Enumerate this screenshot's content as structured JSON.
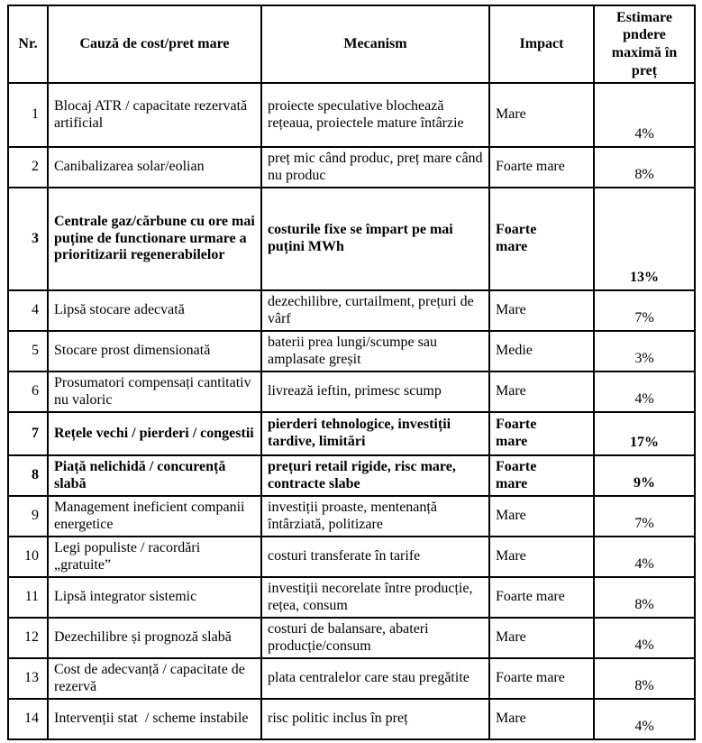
{
  "colors": {
    "navy": "#1f3d73",
    "red": "#e02020",
    "green": "#00a550"
  },
  "table": {
    "headers": {
      "nr": "Nr.",
      "cause": "Cauză de cost/pret mare",
      "mechanism": "Mecanism",
      "impact": "Impact",
      "estimate": "Estimare pndere maximă în preț"
    },
    "rows": [
      {
        "nr": "1",
        "cause": "Blocaj ATR / capacitate rezervată artificial",
        "mechanism": "proiecte speculative blochează rețeaua, proiectele mature întârzie",
        "impact": "Mare",
        "estimate": "4%",
        "color": "default"
      },
      {
        "nr": "2",
        "cause": "Canibalizarea solar/eolian",
        "mechanism": "preț mic când produc, preț mare când nu produc",
        "impact": "Foarte mare",
        "estimate": "8%",
        "color": "default"
      },
      {
        "nr": "3",
        "cause": "Centrale gaz/cărbune cu ore mai puține de functionare urmare a prioritizarii regenerabilelor",
        "mechanism": "costurile fixe se împart pe mai puțini MWh",
        "impact": "Foarte mare",
        "estimate": "13%",
        "color": "navy"
      },
      {
        "nr": "4",
        "cause": "Lipsă stocare adecvată",
        "mechanism": "dezechilibre, curtailment, prețuri de vârf",
        "impact": "Mare",
        "estimate": "7%",
        "color": "default"
      },
      {
        "nr": "5",
        "cause": "Stocare prost dimensionată",
        "mechanism": "baterii prea lungi/scumpe sau amplasate greșit",
        "impact": "Medie",
        "estimate": "3%",
        "color": "default"
      },
      {
        "nr": "6",
        "cause": "Prosumatori compensați cantitativ nu valoric",
        "mechanism": "livrează ieftin, primesc scump",
        "impact": "Mare",
        "estimate": "4%",
        "color": "default"
      },
      {
        "nr": "7",
        "cause": "Rețele vechi / pierderi / congestii",
        "mechanism": "pierderi tehnologice, investiții tardive, limitări",
        "impact": "Foarte mare",
        "estimate": "17%",
        "color": "red"
      },
      {
        "nr": "8",
        "cause": "Piață nelichidă / concurență slabă",
        "mechanism": "prețuri retail rigide, risc mare, contracte slabe",
        "impact": "Foarte mare",
        "estimate": "9%",
        "color": "green"
      },
      {
        "nr": "9",
        "cause": "Management ineficient companii energetice",
        "mechanism": "investiții proaste, mentenanță întârziată, politizare",
        "impact": "Mare",
        "estimate": "7%",
        "color": "default"
      },
      {
        "nr": "10",
        "cause": "Legi populiste / racordări „gratuite”",
        "mechanism": "costuri transferate în tarife",
        "impact": "Mare",
        "estimate": "4%",
        "color": "default"
      },
      {
        "nr": "11",
        "cause": "Lipsă integrator sistemic",
        "mechanism": "investiții necorelate între producție, rețea, consum",
        "impact": "Foarte mare",
        "estimate": "8%",
        "color": "default"
      },
      {
        "nr": "12",
        "cause": "Dezechilibre și prognoză slabă",
        "mechanism": "costuri de balansare, abateri producție/consum",
        "impact": "Mare",
        "estimate": "4%",
        "color": "default"
      },
      {
        "nr": "13",
        "cause": "Cost de adecvanță / capacitate de rezervă",
        "mechanism": "plata centralelor care stau pregătite",
        "impact": "Foarte mare",
        "estimate": "8%",
        "color": "default"
      },
      {
        "nr": "14",
        "cause": "Intervenții stat  / scheme instabile",
        "mechanism": "risc politic inclus în preț",
        "impact": "Mare",
        "estimate": "4%",
        "color": "default"
      }
    ]
  }
}
